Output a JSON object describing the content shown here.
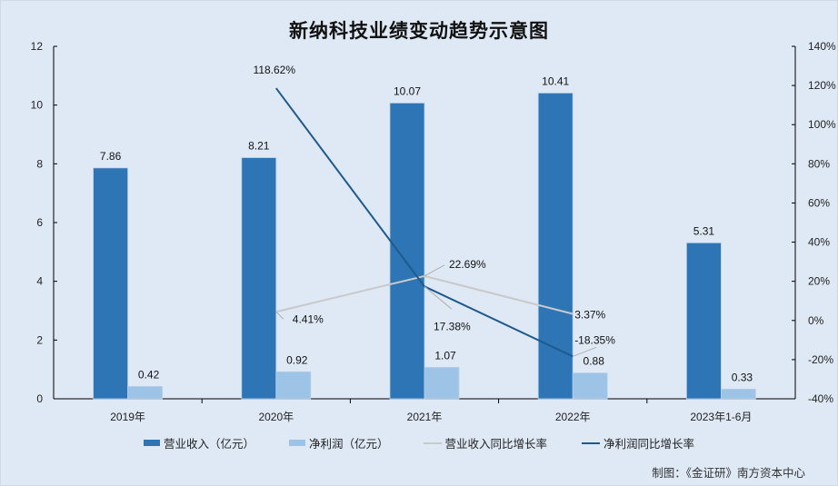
{
  "chart_data": {
    "type": "bar",
    "title": "新纳科技业绩变动趋势示意图",
    "categories": [
      "2019年",
      "2020年",
      "2021年",
      "2022年",
      "2023年1-6月"
    ],
    "series": [
      {
        "name": "营业收入（亿元）",
        "type": "bar",
        "axis": "left",
        "color": "#2e75b6",
        "values": [
          7.86,
          8.21,
          10.07,
          10.41,
          5.31
        ],
        "labels": [
          "7.86",
          "8.21",
          "10.07",
          "10.41",
          "5.31"
        ]
      },
      {
        "name": "净利润（亿元）",
        "type": "bar",
        "axis": "left",
        "color": "#9dc3e6",
        "values": [
          0.42,
          0.92,
          1.07,
          0.88,
          0.33
        ],
        "labels": [
          "0.42",
          "0.92",
          "1.07",
          "0.88",
          "0.33"
        ]
      },
      {
        "name": "营业收入同比增长率",
        "type": "line",
        "axis": "right",
        "color": "#c9c9c9",
        "values": [
          null,
          4.41,
          22.69,
          3.37,
          null
        ],
        "labels": [
          "",
          "4.41%",
          "22.69%",
          "3.37%",
          ""
        ]
      },
      {
        "name": "净利润同比增长率",
        "type": "line",
        "axis": "right",
        "color": "#1f5a8e",
        "values": [
          null,
          118.62,
          17.38,
          -18.35,
          null
        ],
        "labels": [
          "",
          "118.62%",
          "17.38%",
          "-18.35%",
          ""
        ]
      }
    ],
    "left_axis": {
      "ylim": [
        0,
        12
      ],
      "ticks": [
        "0",
        "2",
        "4",
        "6",
        "8",
        "10",
        "12"
      ]
    },
    "right_axis": {
      "ylim": [
        -40,
        140
      ],
      "ticks": [
        "-40%",
        "-20%",
        "0%",
        "20%",
        "40%",
        "60%",
        "80%",
        "100%",
        "120%",
        "140%"
      ]
    },
    "xlabel": "",
    "ylabel": "",
    "grid": false,
    "legend_position": "bottom"
  },
  "title": "新纳科技业绩变动趋势示意图",
  "legend": {
    "items": [
      {
        "label": "营业收入（亿元）"
      },
      {
        "label": "净利润（亿元）"
      },
      {
        "label": "营业收入同比增长率"
      },
      {
        "label": "净利润同比增长率"
      }
    ]
  },
  "credit": "制图：《金证研》南方资本中心"
}
